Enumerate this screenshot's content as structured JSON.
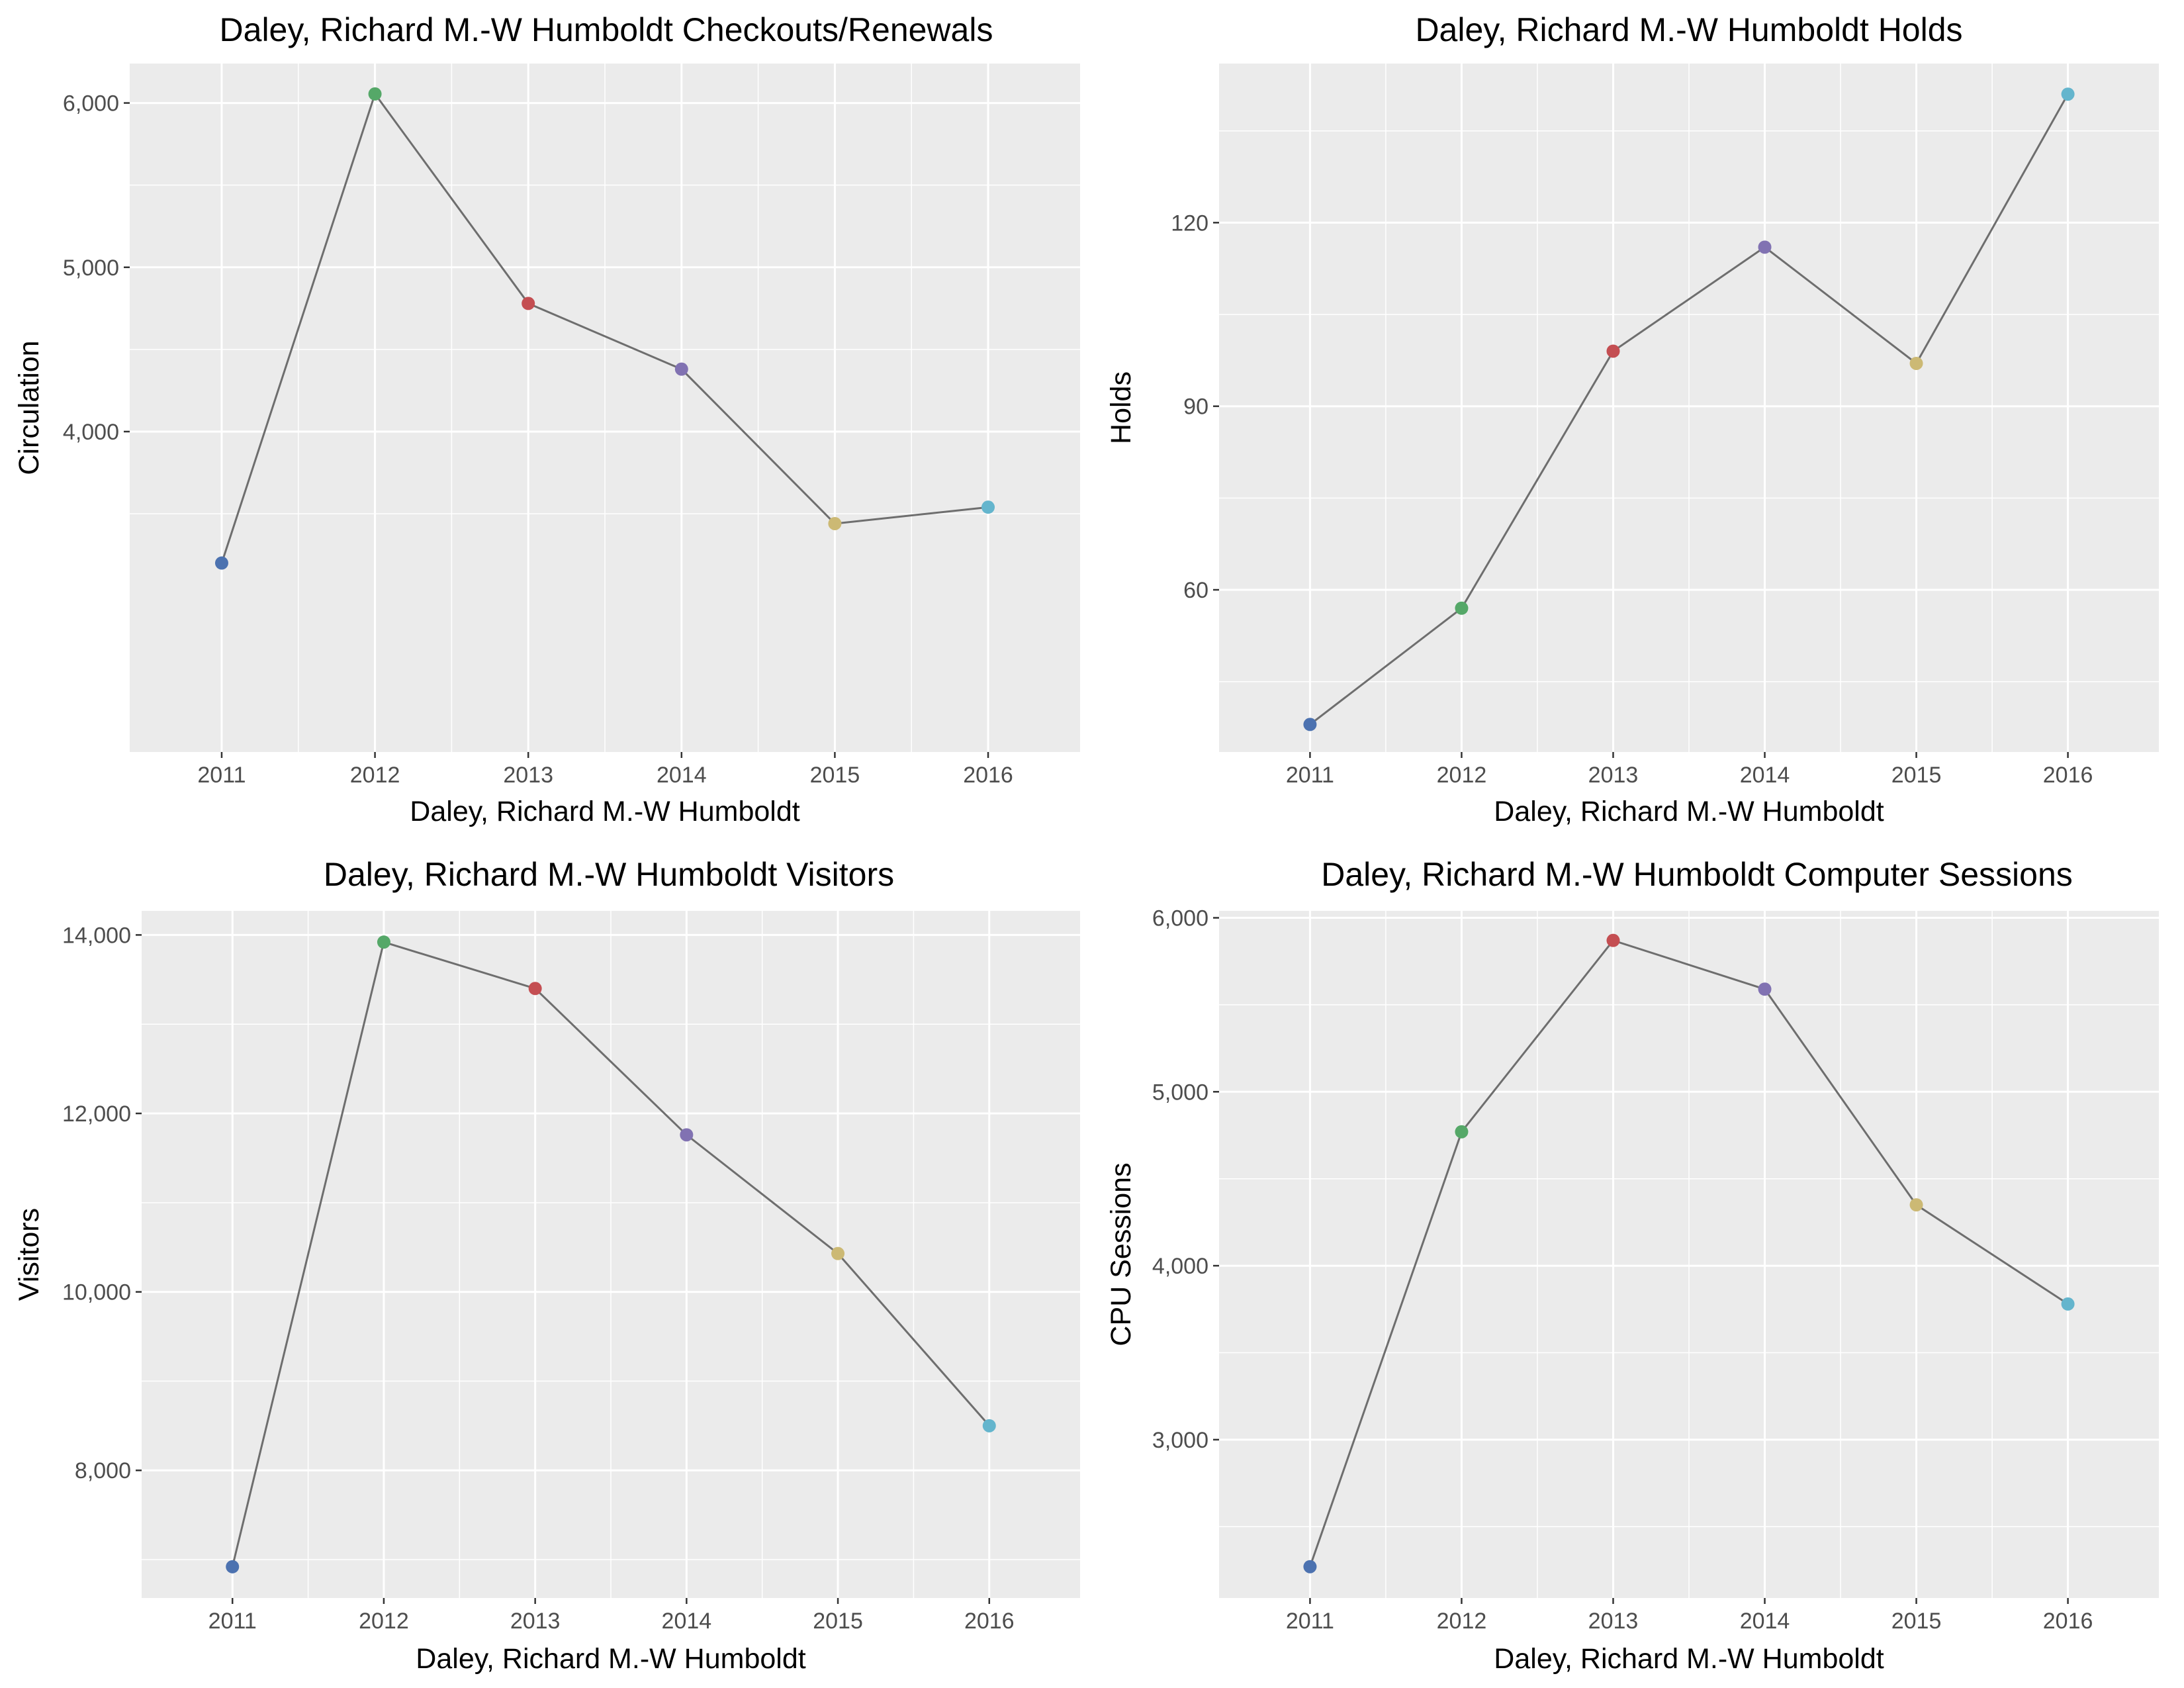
{
  "colors": {
    "point_colors": [
      "#4C72B0",
      "#55A868",
      "#C44E52",
      "#8172B2",
      "#CCB974",
      "#64B5CD"
    ],
    "line": "#6e6e6e",
    "panel_background": "#ebebeb",
    "grid": "#ffffff"
  },
  "chart_data": [
    {
      "type": "line",
      "title": "Daley, Richard M.-W Humboldt Checkouts/Renewals",
      "xlabel": "Daley, Richard M.-W Humboldt",
      "ylabel": "Circulation",
      "x": [
        "2011",
        "2012",
        "2013",
        "2014",
        "2015",
        "2016"
      ],
      "values": [
        3200,
        6055,
        4780,
        4380,
        3440,
        3540
      ],
      "ylim": [
        2050,
        6240
      ],
      "y_ticks": [
        4000,
        5000,
        6000
      ],
      "y_tick_labels": [
        "4,000",
        "5,000",
        "6,000"
      ],
      "y_minor_ticks": [
        3500,
        4500,
        5500
      ],
      "grid": true,
      "legend": "none"
    },
    {
      "type": "line",
      "title": "Daley, Richard M.-W Humboldt Holds",
      "xlabel": "Daley, Richard M.-W Humboldt",
      "ylabel": "Holds",
      "x": [
        "2011",
        "2012",
        "2013",
        "2014",
        "2015",
        "2016"
      ],
      "values": [
        38,
        57,
        99,
        116,
        97,
        141
      ],
      "ylim": [
        33.5,
        146
      ],
      "y_ticks": [
        60,
        90,
        120
      ],
      "y_tick_labels": [
        "60",
        "90",
        "120"
      ],
      "y_minor_ticks": [
        45,
        75,
        105,
        135
      ],
      "grid": true,
      "legend": "none"
    },
    {
      "type": "line",
      "title": "Daley, Richard M.-W Humboldt Visitors",
      "xlabel": "Daley, Richard M.-W Humboldt",
      "ylabel": "Visitors",
      "x": [
        "2011",
        "2012",
        "2013",
        "2014",
        "2015",
        "2016"
      ],
      "values": [
        6920,
        13920,
        13400,
        11760,
        10430,
        8500
      ],
      "ylim": [
        6570,
        14270
      ],
      "y_ticks": [
        8000,
        10000,
        12000,
        14000
      ],
      "y_tick_labels": [
        "8,000",
        "10,000",
        "12,000",
        "14,000"
      ],
      "y_minor_ticks": [
        7000,
        9000,
        11000,
        13000
      ],
      "grid": true,
      "legend": "none"
    },
    {
      "type": "line",
      "title": "Daley, Richard M.-W Humboldt Computer Sessions",
      "xlabel": "Daley, Richard M.-W Humboldt",
      "ylabel": "CPU Sessions",
      "x": [
        "2011",
        "2012",
        "2013",
        "2014",
        "2015",
        "2016"
      ],
      "values": [
        2270,
        4770,
        5870,
        5590,
        4350,
        3780
      ],
      "ylim": [
        2090,
        6040
      ],
      "y_ticks": [
        3000,
        4000,
        5000,
        6000
      ],
      "y_tick_labels": [
        "3,000",
        "4,000",
        "5,000",
        "6,000"
      ],
      "y_minor_ticks": [
        2500,
        3500,
        4500,
        5500
      ],
      "grid": true,
      "legend": "none"
    }
  ]
}
